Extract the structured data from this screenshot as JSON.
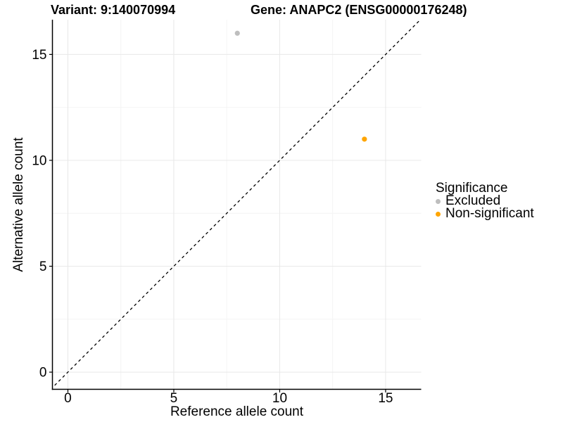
{
  "figure": {
    "title_variant": "Variant: 9:140070994",
    "title_gene": "Gene: ANAPC2 (ENSG00000176248)"
  },
  "chart_data": {
    "type": "scatter",
    "title": "Variant: 9:140070994   Gene: ANAPC2 (ENSG00000176248)",
    "xlabel": "Reference allele count",
    "ylabel": "Alternative allele count",
    "xlim": [
      -0.73,
      16.68
    ],
    "ylim": [
      -0.81,
      16.64
    ],
    "xticks": [
      0,
      5,
      10,
      15
    ],
    "yticks": [
      0,
      5,
      10,
      15
    ],
    "minor_ticks": [
      2.5,
      7.5,
      12.5
    ],
    "grid": {
      "on": true,
      "major_color": "#e8e8e8",
      "minor_color": "#f4f4f4"
    },
    "identity_line": {
      "equation": "y = x",
      "style": "dashed",
      "color": "#000000"
    },
    "series": [
      {
        "name": "Excluded",
        "color": "#bebebe",
        "points": [
          [
            8,
            16
          ]
        ]
      },
      {
        "name": "Non-significant",
        "color": "#ffa500",
        "points": [
          [
            14,
            11
          ]
        ]
      }
    ],
    "legend": {
      "title": "Significance",
      "position": "right",
      "entries": [
        {
          "label": "Excluded",
          "color": "#bebebe"
        },
        {
          "label": "Non-significant",
          "color": "#ffa500"
        }
      ]
    },
    "colors": {
      "axis": "#000000",
      "text": "#000000",
      "background": "#ffffff"
    }
  }
}
